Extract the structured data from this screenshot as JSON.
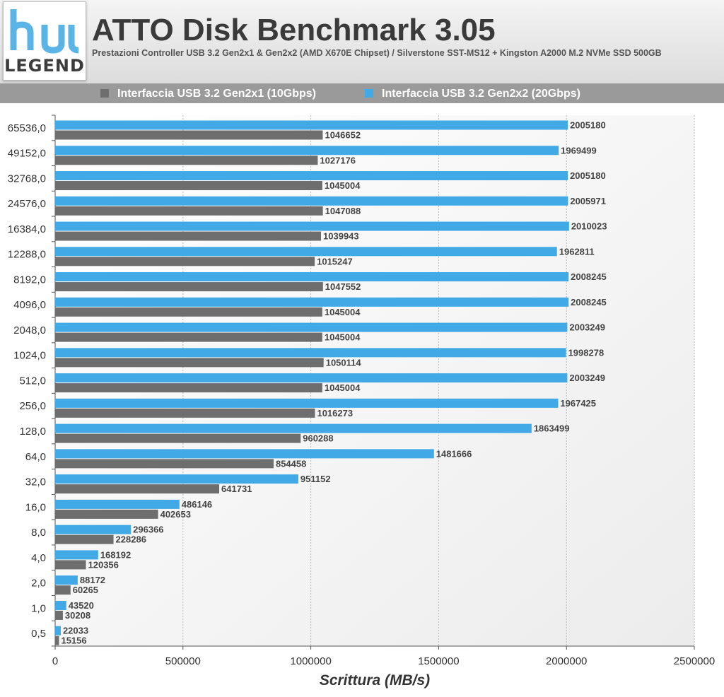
{
  "logo": {
    "mark": "hu",
    "text": "LEGEND"
  },
  "header": {
    "title": "ATTO Disk Benchmark 3.05",
    "subtitle": "Prestazioni Controller USB 3.2 Gen2x1 & Gen2x2 (AMD X670E Chipset) / Silverstone SST-MS12 + Kingston A2000 M.2 NVMe SSD 500GB"
  },
  "colors": {
    "gen2x1": "#6e6e6e",
    "gen2x2": "#41a9e6",
    "logo_mark": "#5ab4e5"
  },
  "chart_data": {
    "type": "bar",
    "orientation": "horizontal",
    "title": "ATTO Disk Benchmark 3.05",
    "xlabel": "Scrittura (MB/s)",
    "ylabel": "",
    "xlim": [
      0,
      2500000
    ],
    "xticks": [
      "0",
      "500000",
      "1000000",
      "1500000",
      "2000000",
      "2500000"
    ],
    "xtick_values": [
      0,
      500000,
      1000000,
      1500000,
      2000000,
      2500000
    ],
    "grid": "vertical dotted",
    "legend_position": "top",
    "categories": [
      "65536,0",
      "49152,0",
      "32768,0",
      "24576,0",
      "16384,0",
      "12288,0",
      "8192,0",
      "4096,0",
      "2048,0",
      "1024,0",
      "512,0",
      "256,0",
      "128,0",
      "64,0",
      "32,0",
      "16,0",
      "8,0",
      "4,0",
      "2,0",
      "1,0",
      "0,5"
    ],
    "series": [
      {
        "name": "Interfaccia USB 3.2 Gen2x2 (20Gbps)",
        "values": [
          2005180,
          1969499,
          2005180,
          2005971,
          2010023,
          1962811,
          2008245,
          2008245,
          2003249,
          1998278,
          2003249,
          1967425,
          1863499,
          1481666,
          951152,
          486146,
          296366,
          168192,
          88172,
          43520,
          22033
        ]
      },
      {
        "name": "Interfaccia USB 3.2 Gen2x1 (10Gbps)",
        "values": [
          1046652,
          1027176,
          1045004,
          1047088,
          1039943,
          1015247,
          1047552,
          1045004,
          1045004,
          1050114,
          1045004,
          1016273,
          960288,
          854458,
          641731,
          402653,
          228286,
          120356,
          60265,
          30208,
          15156
        ]
      }
    ]
  }
}
